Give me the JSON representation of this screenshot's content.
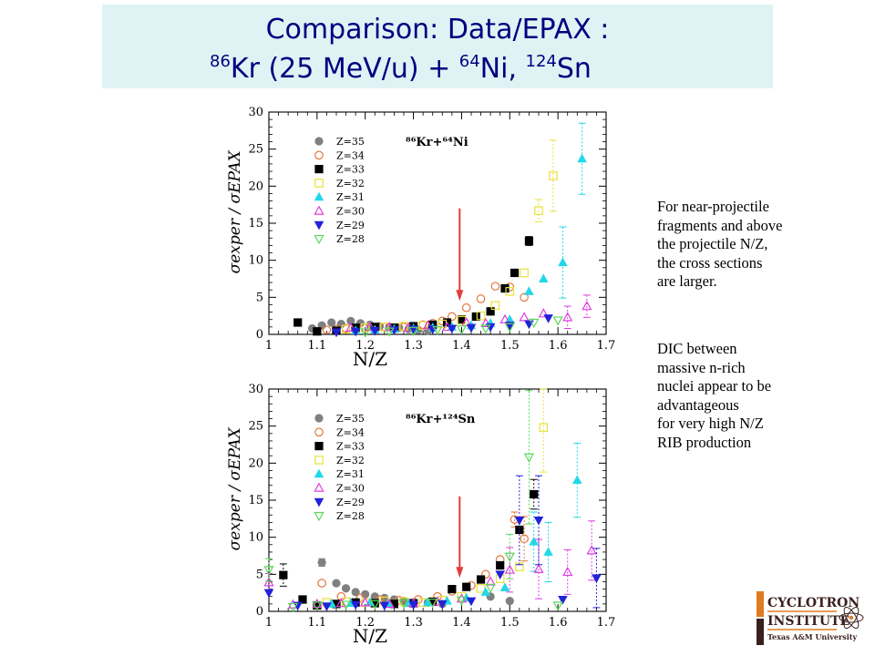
{
  "title": {
    "line1": "Comparison: Data/EPAX :",
    "sup_a": "86",
    "text_a": "Kr (25 MeV/u) + ",
    "sup_b": "64",
    "text_b": "Ni, ",
    "sup_c": "124",
    "text_c": "Sn"
  },
  "annotation": {
    "para1": [
      "For near-projectile",
      "fragments and above",
      "the projectile N/Z,",
      "the cross sections",
      "are larger."
    ],
    "para2": [
      "DIC between",
      "massive n-rich",
      "nuclei appear to be",
      "advantageous",
      "for very high N/Z",
      "RIB  production"
    ]
  },
  "logo": {
    "line1": "CYCLOTRON",
    "line2": "INSTITUTE",
    "line3": "Texas A&M University",
    "colors": {
      "orange": "#e07b1f",
      "dark": "#3a1f1f"
    }
  },
  "chart_data": [
    {
      "type": "scatter",
      "reaction_label": "⁸⁶Kr+⁶⁴Ni",
      "xlabel": "N/Z",
      "ylabel": "σexper / σEPAX",
      "xlim": [
        1.0,
        1.7
      ],
      "ylim": [
        0,
        30
      ],
      "xticks": [
        "1",
        "1.1",
        "1.2",
        "1.3",
        "1.4",
        "1.5",
        "1.6",
        "1.7"
      ],
      "yticks": [
        "0",
        "5",
        "10",
        "15",
        "20",
        "25",
        "30"
      ],
      "arrow": {
        "x": 1.396,
        "y_top": 17.0,
        "y_bottom": 5.5,
        "color": "#e23c3c"
      },
      "series": [
        {
          "name": "Z=35",
          "marker": "circle-filled",
          "color": "#808080",
          "points": [
            [
              1.09,
              0.8
            ],
            [
              1.11,
              1.2
            ],
            [
              1.13,
              1.6
            ],
            [
              1.15,
              1.4
            ],
            [
              1.17,
              1.8
            ],
            [
              1.19,
              1.5
            ],
            [
              1.21,
              1.3
            ],
            [
              1.23,
              1.1
            ],
            [
              1.25,
              1.0
            ],
            [
              1.27,
              0.9
            ],
            [
              1.29,
              0.7
            ],
            [
              1.31,
              0.6
            ],
            [
              1.33,
              0.5
            ]
          ]
        },
        {
          "name": "Z=34",
          "marker": "circle-open",
          "color": "#e2763c",
          "points": [
            [
              1.12,
              0.6
            ],
            [
              1.14,
              0.7
            ],
            [
              1.16,
              0.8
            ],
            [
              1.18,
              0.6
            ],
            [
              1.2,
              0.9
            ],
            [
              1.22,
              0.8
            ],
            [
              1.24,
              1.0
            ],
            [
              1.26,
              0.9
            ],
            [
              1.28,
              1.0
            ],
            [
              1.3,
              1.1
            ],
            [
              1.32,
              1.3
            ],
            [
              1.34,
              1.5
            ],
            [
              1.36,
              1.8
            ],
            [
              1.38,
              2.4
            ],
            [
              1.41,
              3.6
            ],
            [
              1.44,
              4.8
            ],
            [
              1.47,
              6.5
            ],
            [
              1.5,
              6.4
            ],
            [
              1.53,
              5.0
            ]
          ]
        },
        {
          "name": "Z=33",
          "marker": "square-filled",
          "color": "#000000",
          "points": [
            [
              1.06,
              1.6
            ],
            [
              1.1,
              0.4
            ],
            [
              1.14,
              0.5
            ],
            [
              1.18,
              0.9
            ],
            [
              1.22,
              1.0
            ],
            [
              1.26,
              0.9
            ],
            [
              1.3,
              1.1
            ],
            [
              1.34,
              1.3
            ],
            [
              1.37,
              1.6
            ],
            [
              1.4,
              2.0
            ],
            [
              1.43,
              2.4
            ],
            [
              1.46,
              3.1
            ],
            [
              1.49,
              6.2
            ],
            [
              1.51,
              8.3
            ],
            [
              1.54,
              12.6
            ]
          ],
          "errors": {
            "14": 0.6
          }
        },
        {
          "name": "Z=32",
          "marker": "square-open",
          "color": "#e8e23c",
          "points": [
            [
              1.16,
              0.7
            ],
            [
              1.2,
              0.9
            ],
            [
              1.24,
              1.0
            ],
            [
              1.28,
              1.1
            ],
            [
              1.32,
              1.2
            ],
            [
              1.36,
              1.4
            ],
            [
              1.4,
              1.9
            ],
            [
              1.44,
              2.5
            ],
            [
              1.47,
              3.9
            ],
            [
              1.5,
              5.8
            ],
            [
              1.53,
              8.3
            ],
            [
              1.56,
              16.7
            ],
            [
              1.59,
              21.4
            ]
          ],
          "errors": {
            "11": 1.5,
            "12": 4.8
          }
        },
        {
          "name": "Z=31",
          "marker": "triangle-up-filled",
          "color": "#22d8e8",
          "points": [
            [
              1.18,
              0.5
            ],
            [
              1.22,
              0.6
            ],
            [
              1.26,
              0.7
            ],
            [
              1.3,
              0.8
            ],
            [
              1.34,
              0.9
            ],
            [
              1.38,
              1.0
            ],
            [
              1.42,
              1.2
            ],
            [
              1.46,
              1.5
            ],
            [
              1.5,
              2.0
            ],
            [
              1.54,
              5.8
            ],
            [
              1.57,
              7.5
            ],
            [
              1.61,
              9.7
            ],
            [
              1.65,
              23.7
            ]
          ],
          "errors": {
            "11": 4.8,
            "12": 4.8
          }
        },
        {
          "name": "Z=30",
          "marker": "triangle-up-open",
          "color": "#e23ce2",
          "points": [
            [
              1.17,
              0.9
            ],
            [
              1.21,
              1.0
            ],
            [
              1.25,
              1.0
            ],
            [
              1.29,
              0.9
            ],
            [
              1.33,
              1.2
            ],
            [
              1.37,
              1.0
            ],
            [
              1.41,
              1.6
            ],
            [
              1.45,
              1.5
            ],
            [
              1.49,
              2.0
            ],
            [
              1.53,
              2.3
            ],
            [
              1.57,
              2.8
            ],
            [
              1.62,
              2.3
            ],
            [
              1.66,
              3.8
            ]
          ],
          "errors": {
            "11": 1.5,
            "12": 1.5
          }
        },
        {
          "name": "Z=29",
          "marker": "triangle-down-filled",
          "color": "#2222d8",
          "points": [
            [
              1.14,
              0.3
            ],
            [
              1.18,
              0.4
            ],
            [
              1.22,
              0.5
            ],
            [
              1.26,
              0.6
            ],
            [
              1.3,
              0.7
            ],
            [
              1.34,
              0.7
            ],
            [
              1.38,
              0.8
            ],
            [
              1.42,
              0.9
            ],
            [
              1.46,
              1.0
            ],
            [
              1.5,
              1.2
            ],
            [
              1.54,
              1.4
            ],
            [
              1.58,
              2.2
            ]
          ]
        },
        {
          "name": "Z=28",
          "marker": "triangle-down-open",
          "color": "#5ad85a",
          "points": [
            [
              1.2,
              0.3
            ],
            [
              1.25,
              0.4
            ],
            [
              1.3,
              0.5
            ],
            [
              1.35,
              0.6
            ],
            [
              1.4,
              0.7
            ],
            [
              1.45,
              0.8
            ],
            [
              1.5,
              1.0
            ],
            [
              1.55,
              1.6
            ],
            [
              1.6,
              1.9
            ]
          ]
        }
      ]
    },
    {
      "type": "scatter",
      "reaction_label": "⁸⁶Kr+¹²⁴Sn",
      "xlabel": "N/Z",
      "ylabel": "σexper / σEPAX",
      "xlim": [
        1.0,
        1.7
      ],
      "ylim": [
        0,
        30
      ],
      "xticks": [
        "1",
        "1.1",
        "1.2",
        "1.3",
        "1.4",
        "1.5",
        "1.6",
        "1.7"
      ],
      "yticks": [
        "0",
        "5",
        "10",
        "15",
        "20",
        "25",
        "30"
      ],
      "arrow": {
        "x": 1.396,
        "y_top": 15.5,
        "y_bottom": 5.5,
        "color": "#e23c3c"
      },
      "series": [
        {
          "name": "Z=35",
          "marker": "circle-filled",
          "color": "#808080",
          "points": [
            [
              1.11,
              6.6
            ],
            [
              1.14,
              3.8
            ],
            [
              1.16,
              3.1
            ],
            [
              1.18,
              2.6
            ],
            [
              1.2,
              2.3
            ],
            [
              1.22,
              2.0
            ],
            [
              1.24,
              1.8
            ],
            [
              1.26,
              1.6
            ],
            [
              1.28,
              1.4
            ],
            [
              1.3,
              1.2
            ],
            [
              1.33,
              1.2
            ],
            [
              1.36,
              1.0
            ],
            [
              1.46,
              2.0
            ],
            [
              1.5,
              1.4
            ]
          ],
          "errors": {
            "0": 0.5
          }
        },
        {
          "name": "Z=34",
          "marker": "circle-open",
          "color": "#e2763c",
          "points": [
            [
              1.11,
              3.8
            ],
            [
              1.15,
              2.0
            ],
            [
              1.19,
              1.8
            ],
            [
              1.23,
              1.6
            ],
            [
              1.27,
              1.5
            ],
            [
              1.31,
              1.6
            ],
            [
              1.35,
              2.0
            ],
            [
              1.38,
              2.7
            ],
            [
              1.42,
              3.5
            ],
            [
              1.45,
              5.0
            ],
            [
              1.48,
              7.0
            ],
            [
              1.51,
              12.4
            ],
            [
              1.53,
              9.8
            ]
          ],
          "errors": {
            "11": 1.0,
            "12": 3.0
          }
        },
        {
          "name": "Z=33",
          "marker": "square-filled",
          "color": "#000000",
          "points": [
            [
              1.03,
              4.9
            ],
            [
              1.07,
              1.6
            ],
            [
              1.1,
              0.8
            ],
            [
              1.14,
              1.0
            ],
            [
              1.18,
              1.2
            ],
            [
              1.22,
              1.1
            ],
            [
              1.26,
              1.0
            ],
            [
              1.3,
              1.1
            ],
            [
              1.34,
              1.3
            ],
            [
              1.38,
              3.0
            ],
            [
              1.41,
              3.3
            ],
            [
              1.44,
              4.3
            ],
            [
              1.48,
              6.2
            ],
            [
              1.52,
              11.0
            ],
            [
              1.55,
              15.8
            ]
          ],
          "errors": {
            "0": 1.5,
            "14": 2.0
          }
        },
        {
          "name": "Z=32",
          "marker": "square-open",
          "color": "#e8e23c",
          "points": [
            [
              1.12,
              1.2
            ],
            [
              1.16,
              1.3
            ],
            [
              1.2,
              1.2
            ],
            [
              1.24,
              1.4
            ],
            [
              1.28,
              1.3
            ],
            [
              1.32,
              1.2
            ],
            [
              1.36,
              1.5
            ],
            [
              1.4,
              2.0
            ],
            [
              1.44,
              3.1
            ],
            [
              1.48,
              4.4
            ],
            [
              1.52,
              6.0
            ],
            [
              1.57,
              24.8
            ]
          ],
          "errors": {
            "11": 6.0
          }
        },
        {
          "name": "Z=31",
          "marker": "triangle-up-filled",
          "color": "#22d8e8",
          "points": [
            [
              1.13,
              1.0
            ],
            [
              1.17,
              1.1
            ],
            [
              1.21,
              1.2
            ],
            [
              1.25,
              1.0
            ],
            [
              1.29,
              1.1
            ],
            [
              1.33,
              1.2
            ],
            [
              1.37,
              1.4
            ],
            [
              1.41,
              1.8
            ],
            [
              1.45,
              2.6
            ],
            [
              1.49,
              3.2
            ],
            [
              1.55,
              9.4
            ],
            [
              1.58,
              8.0
            ],
            [
              1.64,
              17.7
            ]
          ],
          "errors": {
            "10": 4.0,
            "11": 4.0,
            "12": 5.0
          }
        },
        {
          "name": "Z=30",
          "marker": "triangle-up-open",
          "color": "#e23ce2",
          "points": [
            [
              1.0,
              3.9
            ],
            [
              1.05,
              0.9
            ],
            [
              1.1,
              1.0
            ],
            [
              1.15,
              1.1
            ],
            [
              1.2,
              1.2
            ],
            [
              1.25,
              1.0
            ],
            [
              1.3,
              1.1
            ],
            [
              1.35,
              1.3
            ],
            [
              1.4,
              1.7
            ],
            [
              1.46,
              4.0
            ],
            [
              1.5,
              5.6
            ],
            [
              1.56,
              5.7
            ],
            [
              1.62,
              5.3
            ],
            [
              1.67,
              8.2
            ]
          ],
          "errors": {
            "0": 1.2,
            "10": 3.0,
            "11": 4.0,
            "12": 3.0,
            "13": 4.0
          }
        },
        {
          "name": "Z=29",
          "marker": "triangle-down-filled",
          "color": "#2222d8",
          "points": [
            [
              1.0,
              2.5
            ],
            [
              1.06,
              0.8
            ],
            [
              1.12,
              0.7
            ],
            [
              1.18,
              0.9
            ],
            [
              1.24,
              0.8
            ],
            [
              1.3,
              0.9
            ],
            [
              1.36,
              1.0
            ],
            [
              1.42,
              1.4
            ],
            [
              1.48,
              5.0
            ],
            [
              1.52,
              12.3
            ],
            [
              1.56,
              12.3
            ],
            [
              1.61,
              1.6
            ],
            [
              1.68,
              4.5
            ]
          ],
          "errors": {
            "9": 6.0,
            "10": 6.0,
            "12": 4.0
          }
        },
        {
          "name": "Z=28",
          "marker": "triangle-down-open",
          "color": "#5ad85a",
          "points": [
            [
              1.0,
              5.6
            ],
            [
              1.05,
              0.6
            ],
            [
              1.1,
              0.8
            ],
            [
              1.16,
              0.9
            ],
            [
              1.22,
              1.0
            ],
            [
              1.28,
              1.1
            ],
            [
              1.34,
              1.2
            ],
            [
              1.4,
              1.5
            ],
            [
              1.46,
              3.2
            ],
            [
              1.5,
              7.4
            ],
            [
              1.54,
              20.8
            ],
            [
              1.6,
              0.8
            ]
          ],
          "errors": {
            "0": 1.5,
            "9": 3.0,
            "10": 9.0
          }
        }
      ]
    }
  ]
}
